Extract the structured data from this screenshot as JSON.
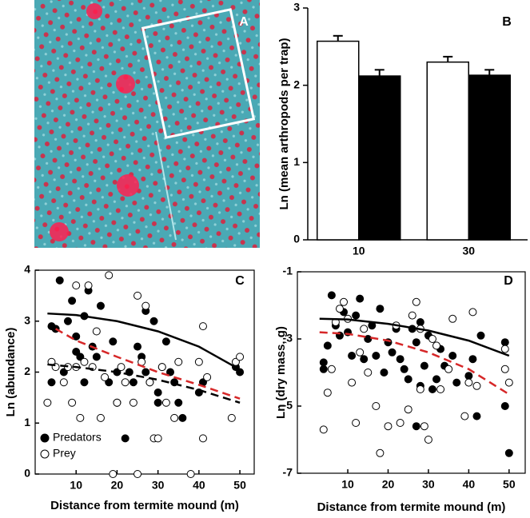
{
  "chart_data": [
    {
      "type": "image",
      "panel": "A"
    },
    {
      "type": "bar",
      "panel": "B",
      "ylabel": "Ln (mean arthropods per trap)",
      "categories": [
        "10",
        "30"
      ],
      "series": [
        {
          "color": "#ffffff",
          "values": [
            2.57,
            2.3
          ],
          "errors": [
            0.07,
            0.07
          ]
        },
        {
          "color": "#000000",
          "values": [
            2.12,
            2.13
          ],
          "errors": [
            0.08,
            0.07
          ]
        }
      ],
      "ylim": [
        0,
        3
      ],
      "yticks": [
        0,
        1,
        2,
        3
      ]
    },
    {
      "type": "scatter",
      "panel": "C",
      "xlabel": "Distance from termite mound (m)",
      "ylabel": "Ln (abundance)",
      "xlim": [
        0,
        53.5
      ],
      "xticks": [
        10,
        20,
        30,
        40,
        50
      ],
      "ylim": [
        0,
        4
      ],
      "yticks": [
        0,
        1,
        2,
        3,
        4
      ],
      "legend": "lower left",
      "series": [
        {
          "name": "Predators",
          "color": "#000000",
          "x": [
            4,
            4,
            5,
            6,
            7,
            8,
            9,
            10,
            10,
            11,
            12,
            12,
            13,
            14,
            15,
            16,
            18,
            19,
            20,
            20,
            22,
            23,
            24,
            25,
            26,
            27,
            27,
            28,
            29,
            30,
            30,
            31,
            32,
            33,
            34,
            35,
            36,
            40,
            41,
            49,
            50
          ],
          "values": [
            2.9,
            1.8,
            2.85,
            3.8,
            2.0,
            3.0,
            3.4,
            2.4,
            2.7,
            2.3,
            3.1,
            1.8,
            3.6,
            2.5,
            2.3,
            3.3,
            1.8,
            2.6,
            2.0,
            1.4,
            0.7,
            2.0,
            1.8,
            2.5,
            2.3,
            3.2,
            2.0,
            1.8,
            3.0,
            1.6,
            1.4,
            2.1,
            2.6,
            2.0,
            1.8,
            1.4,
            1.1,
            1.6,
            1.8,
            2.1,
            2.0
          ]
        },
        {
          "name": "Prey",
          "color": "#ffffff",
          "x": [
            3,
            4,
            5,
            7,
            8,
            9,
            10,
            10,
            11,
            12,
            13,
            14,
            15,
            16,
            17,
            18,
            19,
            20,
            21,
            22,
            24,
            25,
            25,
            26,
            27,
            28,
            29,
            30,
            31,
            32,
            34,
            35,
            38,
            40,
            41,
            41,
            42,
            48,
            49,
            50
          ],
          "values": [
            1.4,
            2.2,
            2.1,
            1.8,
            2.1,
            1.4,
            3.7,
            2.1,
            1.1,
            2.2,
            3.7,
            2.1,
            2.8,
            1.1,
            1.9,
            3.9,
            0.0,
            1.4,
            2.1,
            1.8,
            1.4,
            3.5,
            0.0,
            2.2,
            3.3,
            1.8,
            0.7,
            0.7,
            2.1,
            1.4,
            1.1,
            2.2,
            0.0,
            2.2,
            2.9,
            0.7,
            1.9,
            1.1,
            2.2,
            2.3
          ]
        }
      ],
      "lines": [
        {
          "color": "#000000",
          "dash": "solid",
          "x": [
            3,
            10,
            20,
            30,
            40,
            50
          ],
          "values": [
            3.15,
            3.12,
            3.0,
            2.8,
            2.5,
            2.05
          ]
        },
        {
          "color": "#d62728",
          "dash": "dashed",
          "x": [
            5,
            10,
            20,
            30,
            40,
            50
          ],
          "values": [
            2.85,
            2.62,
            2.3,
            2.0,
            1.75,
            1.48
          ]
        },
        {
          "color": "#000000",
          "dash": "dashed",
          "x": [
            3,
            10,
            20,
            30,
            40,
            50
          ],
          "values": [
            2.15,
            2.1,
            2.0,
            1.85,
            1.65,
            1.4
          ]
        }
      ]
    },
    {
      "type": "scatter",
      "panel": "D",
      "xlabel": "Distance from termite mound (m)",
      "ylabel": "Ln (dry mass, g)",
      "xlim": [
        -2.5,
        54
      ],
      "xticks": [
        10,
        20,
        30,
        40,
        50
      ],
      "ylim": [
        -7,
        -1
      ],
      "yticks": [
        -1,
        -3,
        -5,
        -7
      ],
      "series": [
        {
          "color": "#000000",
          "x": [
            4,
            4,
            5,
            6,
            7,
            8,
            9,
            10,
            11,
            12,
            13,
            14,
            15,
            16,
            17,
            18,
            19,
            20,
            21,
            22,
            23,
            24,
            25,
            26,
            27,
            28,
            28,
            29,
            30,
            31,
            32,
            33,
            34,
            36,
            37,
            40,
            41,
            42,
            43,
            49,
            49,
            50,
            27
          ],
          "values": [
            -3.7,
            -3.9,
            -3.2,
            -1.7,
            -2.6,
            -2.9,
            -2.2,
            -2.8,
            -3.5,
            -2.3,
            -1.8,
            -3.6,
            -3.0,
            -2.6,
            -3.5,
            -2.1,
            -4.0,
            -3.1,
            -3.4,
            -2.7,
            -3.6,
            -3.9,
            -4.2,
            -2.7,
            -3.1,
            -2.5,
            -4.4,
            -3.8,
            -2.9,
            -4.5,
            -4.2,
            -3.3,
            -3.8,
            -3.5,
            -4.3,
            -4.1,
            -3.6,
            -5.3,
            -2.9,
            -3.1,
            -5.0,
            -6.4,
            -5.6
          ]
        },
        {
          "color": "#ffffff",
          "x": [
            4,
            5,
            6,
            7,
            8,
            9,
            10,
            11,
            12,
            13,
            14,
            15,
            17,
            18,
            20,
            22,
            23,
            25,
            26,
            27,
            28,
            28,
            29,
            30,
            31,
            32,
            33,
            35,
            36,
            39,
            40,
            41,
            42,
            49,
            50,
            49
          ],
          "values": [
            -5.7,
            -4.6,
            -3.9,
            -2.5,
            -2.1,
            -1.9,
            -2.4,
            -4.3,
            -5.5,
            -3.4,
            -2.7,
            -4.0,
            -5.0,
            -6.4,
            -5.6,
            -2.6,
            -5.5,
            -5.1,
            -2.3,
            -1.9,
            -2.7,
            -4.5,
            -5.6,
            -6.0,
            -3.0,
            -3.2,
            -4.5,
            -3.9,
            -2.4,
            -5.3,
            -4.3,
            -2.2,
            -4.4,
            -3.3,
            -4.3,
            -3.9
          ]
        }
      ],
      "lines": [
        {
          "color": "#000000",
          "dash": "solid",
          "x": [
            3,
            10,
            20,
            30,
            40,
            50
          ],
          "values": [
            -2.4,
            -2.42,
            -2.55,
            -2.75,
            -3.05,
            -3.5
          ]
        },
        {
          "color": "#d62728",
          "dash": "dashed",
          "x": [
            3,
            10,
            20,
            30,
            40,
            50
          ],
          "values": [
            -2.8,
            -2.85,
            -3.05,
            -3.4,
            -3.9,
            -4.65
          ]
        }
      ]
    }
  ]
}
